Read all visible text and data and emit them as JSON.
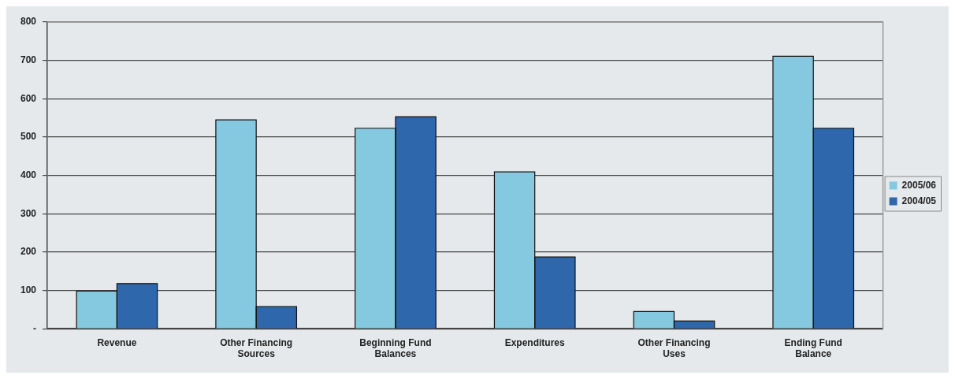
{
  "chart_data": {
    "type": "bar",
    "categories": [
      "Revenue",
      "Other Financing Sources",
      "Beginning Fund Balances",
      "Expenditures",
      "Other Financing Uses",
      "Ending Fund Balance"
    ],
    "series": [
      {
        "name": "2005/06",
        "color": "#84c9e0",
        "values": [
          98,
          545,
          523,
          409,
          45,
          711
        ]
      },
      {
        "name": "2004/05",
        "color": "#2f67ac",
        "values": [
          118,
          58,
          553,
          187,
          20,
          523
        ]
      }
    ],
    "ylim": [
      0,
      800
    ],
    "yticks": [
      {
        "value": 0,
        "label": "-"
      },
      100,
      200,
      300,
      400,
      500,
      600,
      700,
      800
    ],
    "grid": "y",
    "legend": "right"
  }
}
